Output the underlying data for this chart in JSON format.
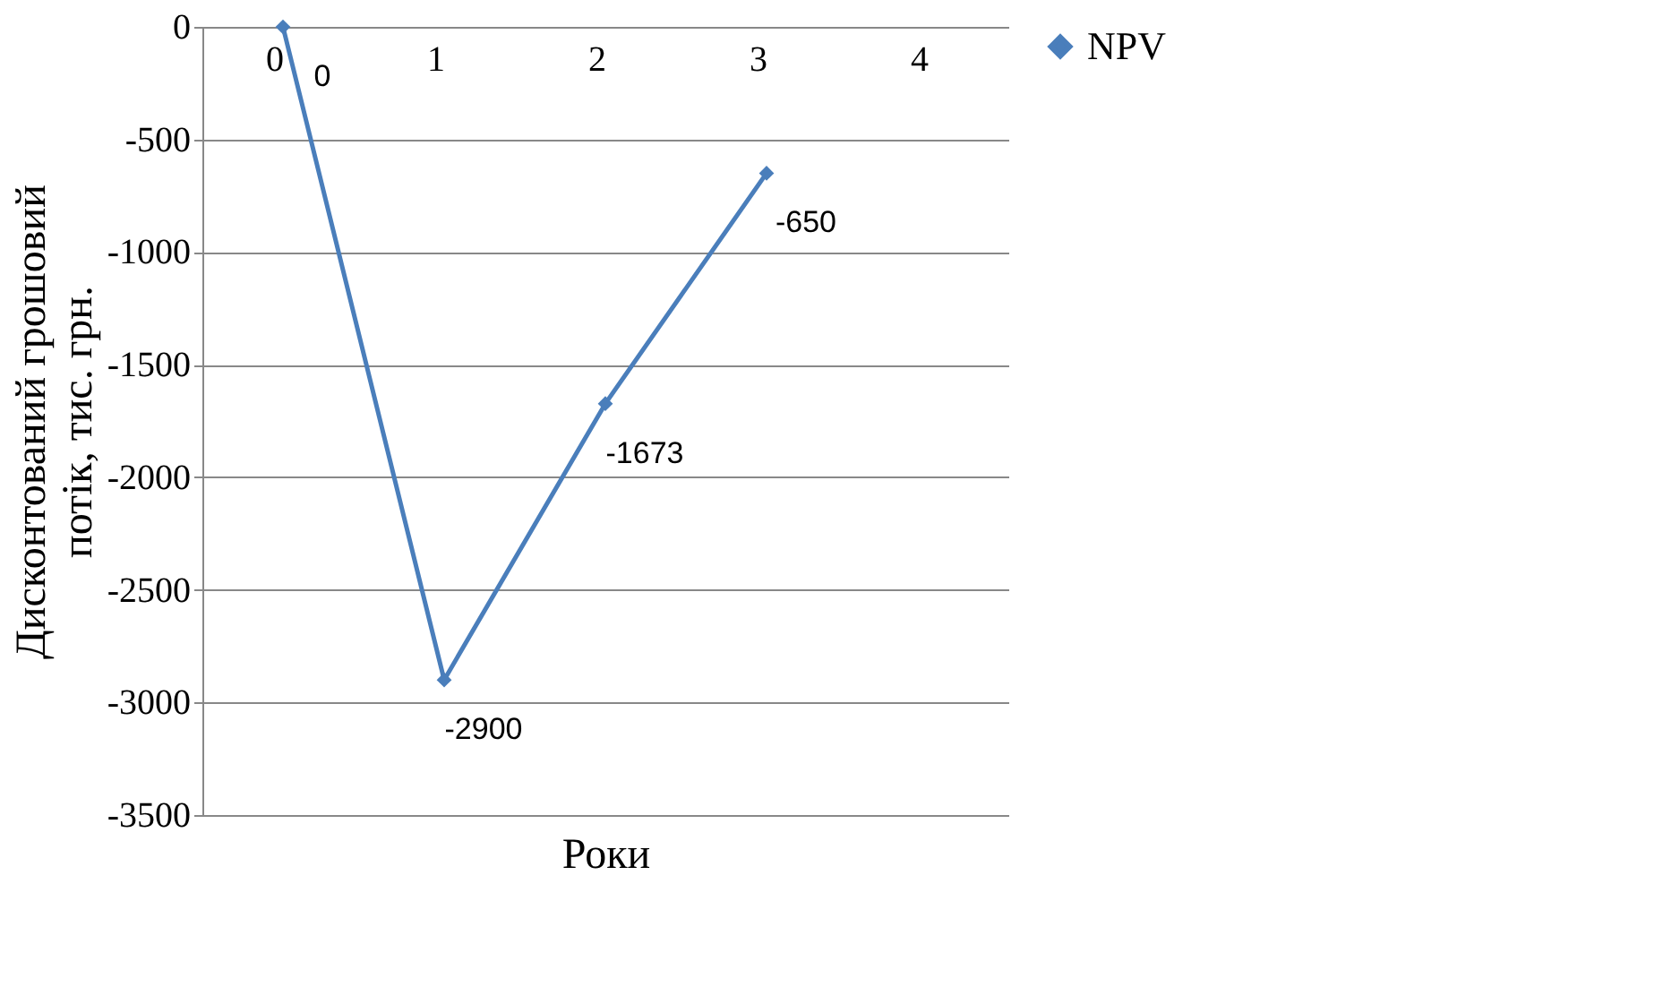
{
  "chart_data": {
    "type": "line",
    "xlabel": "Роки",
    "ylabel": "Дисконтований грошовий потік, тис. грн.",
    "categories": [
      "0",
      "1",
      "2",
      "3",
      "4"
    ],
    "series": [
      {
        "name": "NPV",
        "color": "#4a7ebb",
        "values": [
          0,
          -2900,
          -1673,
          -650,
          null
        ]
      }
    ],
    "ylim": [
      -3500,
      0
    ],
    "yticks": [
      0,
      -500,
      -1000,
      -1500,
      -2000,
      -2500,
      -3000,
      -3500
    ],
    "grid": "y",
    "legend": "right",
    "marker": "diamond",
    "data_labels": true,
    "line_style": "solid"
  }
}
